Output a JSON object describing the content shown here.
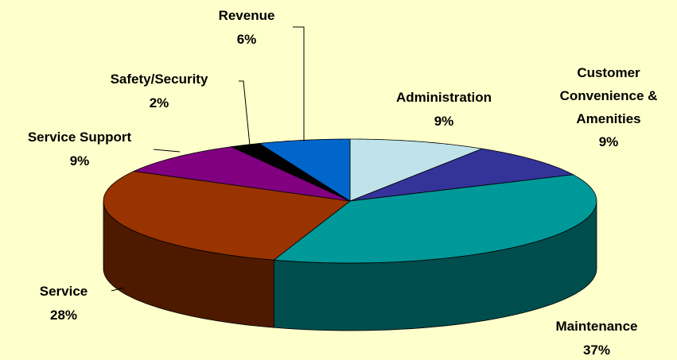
{
  "chart_data": {
    "type": "pie3d",
    "categories": [
      "Administration",
      "Customer Convenience & Amenities",
      "Maintenance",
      "Service",
      "Service Support",
      "Safety/Security",
      "Revenue"
    ],
    "values": [
      9,
      9,
      37,
      28,
      9,
      2,
      6
    ],
    "value_labels": [
      "9%",
      "9%",
      "37%",
      "28%",
      "9%",
      "2%",
      "6%"
    ],
    "colors": [
      "#bfe3e9",
      "#333399",
      "#009999",
      "#993300",
      "#800080",
      "#000000",
      "#0066cc"
    ]
  }
}
